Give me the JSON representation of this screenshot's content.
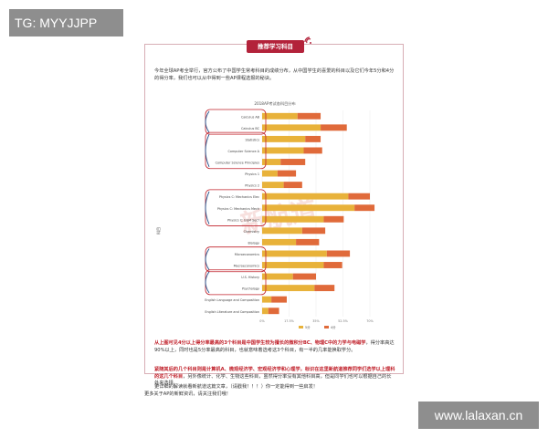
{
  "watermarks": {
    "top_left": "TG: MYYJJPP",
    "bottom_right": "www.lalaxan.cn",
    "chart_overlay": "新航道"
  },
  "header": {
    "title": "推荐学习科目"
  },
  "intro": "今年全球AP考全举行，官方公布了中国学生常考科目的成绩分布，从中国学生的喜爱的科目以及它们今年5分和4分的得分率，我们也可以从中得到一些AP课程选报的秘诀。",
  "chart_data": {
    "type": "bar",
    "title": "2018AP考试各科目分布",
    "ylabel": "科目",
    "xlabel": "",
    "categories": [
      "Calculus AB",
      "Calculus BC",
      "Statistics",
      "Computer Science A",
      "Computer Science Principles",
      "Physics 1",
      "Physics 2",
      "Physics C: Mechanics Elec",
      "Physics C: Mechanics Mech",
      "Physics C: E&M Sec?",
      "Chemistry",
      "Biology",
      "Microeconomics",
      "Macroeconomics",
      "U.S. History",
      "Psychology",
      "English Language and Composition",
      "English Literature and Composition"
    ],
    "series": [
      {
        "name": "5分",
        "color": "#e8b23a",
        "values": [
          0.23,
          0.38,
          0.28,
          0.27,
          0.12,
          0.1,
          0.14,
          0.56,
          0.6,
          0.4,
          0.26,
          0.22,
          0.42,
          0.4,
          0.2,
          0.34,
          0.06,
          0.04
        ]
      },
      {
        "name": "4分",
        "color": "#e06a3a",
        "values": [
          0.15,
          0.17,
          0.1,
          0.12,
          0.16,
          0.12,
          0.12,
          0.14,
          0.13,
          0.13,
          0.15,
          0.15,
          0.15,
          0.12,
          0.15,
          0.13,
          0.1,
          0.07
        ]
      }
    ],
    "ticks": [
      "0%",
      "17.5%",
      "35%",
      "52.5%",
      "70%"
    ],
    "xlim": [
      0,
      0.7
    ],
    "highlight_groups": [
      [
        0,
        1
      ],
      [
        2,
        4
      ],
      [
        7,
        9
      ],
      [
        12,
        13
      ],
      [
        14,
        15
      ]
    ],
    "grid": true,
    "legend": "bottom"
  },
  "analysis": {
    "p1_red": "从上图可见4分以上得分率最高的3个科目是中国学生较为擅长的微积分BC、物理C中的力学与电磁学",
    "p1_rest": "，得分率高达90%以上，同时也是5分率最高的科目，也就意味着选考这3个科目，有一半的几率能换取学分。",
    "p2_red": "紧随其后的几个科目则是计算机A、微观经济学、宏观经济学和心理学，标识在这里新航道推荐同学们选学以上理科的这几个科目",
    "p2_rest": "，另外像统计、化学、生物这些科目，虽然得分率没有其他科目高，但是同学们也可以根据自己的长处来选择。",
    "p3": "更详细的解读就看新航道这篇文章，（请戳我！！！）你一定能得到一些启发！"
  },
  "footer": {
    "text": "更多关于AP的新鲜资讯，请关注我们哦！"
  }
}
